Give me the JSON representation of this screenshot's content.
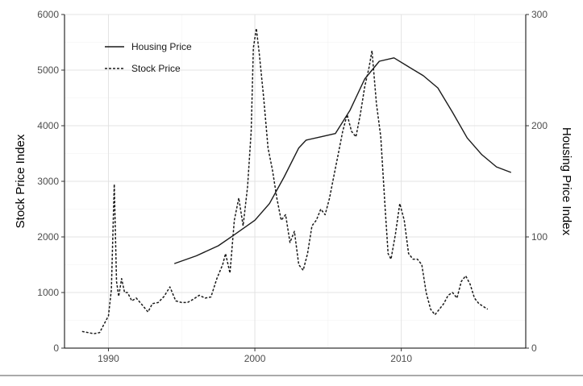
{
  "chart_data": {
    "type": "line",
    "title": "",
    "xlabel": "",
    "ylabel": "Stock Price Index",
    "y2label": "Housing Price Index",
    "xlim": [
      1987,
      2018.5
    ],
    "ylim": [
      0,
      6000
    ],
    "y2lim": [
      0,
      300
    ],
    "x_ticks": [
      1990,
      2000,
      2010
    ],
    "y_ticks": [
      0,
      1000,
      2000,
      3000,
      4000,
      5000,
      6000
    ],
    "y2_ticks": [
      0,
      100,
      200,
      300
    ],
    "grid": true,
    "legend_position": "top-left",
    "series": [
      {
        "name": "Housing Price",
        "axis": "right",
        "line_style": "solid",
        "color": "#1a1a1a",
        "x": [
          1994.5,
          1996,
          1997.5,
          1998.5,
          2000,
          2001,
          2002,
          2003,
          2003.5,
          2004.5,
          2005.5,
          2006.5,
          2007.5,
          2008.5,
          2009.5,
          2010.5,
          2011.5,
          2012.5,
          2013.5,
          2014.5,
          2015.5,
          2016.5,
          2017.5
        ],
        "values": [
          76,
          83,
          92,
          101,
          115,
          130,
          154,
          180,
          187,
          190,
          193,
          214,
          242,
          258,
          261,
          253,
          245,
          234,
          212,
          189,
          174,
          163,
          158
        ]
      },
      {
        "name": "Stock Price",
        "axis": "left",
        "line_style": "dashed",
        "color": "#1a1a1a",
        "x": [
          1988.2,
          1988.6,
          1989.0,
          1989.4,
          1989.7,
          1990.0,
          1990.2,
          1990.4,
          1990.55,
          1990.7,
          1990.9,
          1991.1,
          1991.3,
          1991.6,
          1991.9,
          1992.3,
          1992.7,
          1993.0,
          1993.4,
          1993.8,
          1994.2,
          1994.6,
          1995.0,
          1995.4,
          1995.8,
          1996.2,
          1996.6,
          1997.0,
          1997.4,
          1997.8,
          1998.0,
          1998.3,
          1998.6,
          1998.9,
          1999.2,
          1999.5,
          1999.75,
          1999.9,
          2000.1,
          2000.3,
          2000.6,
          2000.9,
          2001.2,
          2001.5,
          2001.8,
          2002.1,
          2002.4,
          2002.7,
          2003.0,
          2003.3,
          2003.6,
          2003.9,
          2004.2,
          2004.5,
          2004.8,
          2005.1,
          2005.4,
          2005.7,
          2006.0,
          2006.3,
          2006.6,
          2006.9,
          2007.2,
          2007.5,
          2007.8,
          2008.0,
          2008.3,
          2008.6,
          2008.9,
          2009.1,
          2009.3,
          2009.6,
          2009.9,
          2010.2,
          2010.5,
          2010.8,
          2011.1,
          2011.4,
          2011.7,
          2012.0,
          2012.3,
          2012.6,
          2012.9,
          2013.2,
          2013.5,
          2013.8,
          2014.1,
          2014.4,
          2014.7,
          2015.0,
          2015.3,
          2015.6,
          2015.9
        ],
        "values": [
          300,
          280,
          260,
          280,
          430,
          580,
          1050,
          2950,
          1200,
          930,
          1250,
          1000,
          1000,
          850,
          900,
          780,
          650,
          800,
          820,
          930,
          1100,
          850,
          820,
          820,
          880,
          950,
          900,
          920,
          1250,
          1500,
          1700,
          1350,
          2300,
          2700,
          2200,
          2900,
          3900,
          5400,
          5750,
          5300,
          4500,
          3600,
          3200,
          2700,
          2300,
          2400,
          1900,
          2100,
          1500,
          1400,
          1700,
          2200,
          2300,
          2500,
          2400,
          2700,
          3100,
          3500,
          3900,
          4200,
          3900,
          3800,
          4200,
          4700,
          5050,
          5350,
          4400,
          3800,
          2500,
          1700,
          1600,
          2050,
          2600,
          2300,
          1700,
          1600,
          1600,
          1500,
          1000,
          700,
          600,
          700,
          800,
          950,
          1000,
          900,
          1200,
          1300,
          1150,
          900,
          800,
          750,
          700
        ]
      }
    ]
  }
}
